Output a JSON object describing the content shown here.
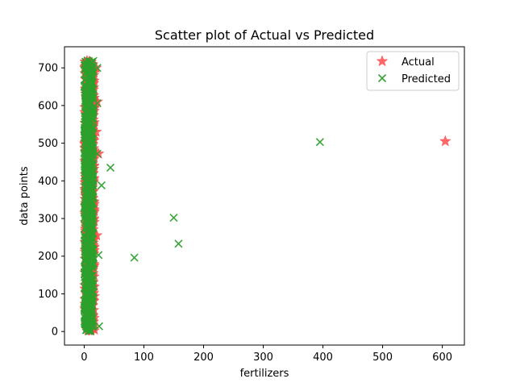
{
  "chart_data": {
    "type": "scatter",
    "title": "Scatter plot of Actual vs Predicted",
    "xlabel": "fertilizers",
    "ylabel": "data points",
    "xlim": [
      -33,
      637
    ],
    "ylim": [
      -36,
      756
    ],
    "xticks": [
      0,
      100,
      200,
      300,
      400,
      500,
      600
    ],
    "yticks": [
      0,
      100,
      200,
      300,
      400,
      500,
      600,
      700
    ],
    "grid": false,
    "legend": "top-right",
    "colors": {
      "actual": "#ff4d4d",
      "predicted": "#2ca02c"
    },
    "series": [
      {
        "name": "Actual",
        "marker": "star",
        "bulk": {
          "x_range": [
            0,
            18
          ],
          "y_range": [
            0,
            720
          ],
          "count": 720
        },
        "extra_points": [
          {
            "x": 605,
            "y": 505
          },
          {
            "x": 20,
            "y": 700
          },
          {
            "x": 22,
            "y": 610
          },
          {
            "x": 20,
            "y": 530
          },
          {
            "x": 24,
            "y": 472
          },
          {
            "x": 21,
            "y": 255
          }
        ]
      },
      {
        "name": "Predicted",
        "marker": "x",
        "bulk": {
          "x_range": [
            0,
            16
          ],
          "y_range": [
            0,
            720
          ],
          "count": 720
        },
        "extra_points": [
          {
            "x": 395,
            "y": 503
          },
          {
            "x": 44,
            "y": 435
          },
          {
            "x": 29,
            "y": 388
          },
          {
            "x": 150,
            "y": 302
          },
          {
            "x": 158,
            "y": 233
          },
          {
            "x": 84,
            "y": 196
          },
          {
            "x": 24,
            "y": 203
          },
          {
            "x": 25,
            "y": 14
          },
          {
            "x": 22,
            "y": 700
          },
          {
            "x": 22,
            "y": 606
          },
          {
            "x": 22,
            "y": 472
          }
        ]
      }
    ]
  }
}
